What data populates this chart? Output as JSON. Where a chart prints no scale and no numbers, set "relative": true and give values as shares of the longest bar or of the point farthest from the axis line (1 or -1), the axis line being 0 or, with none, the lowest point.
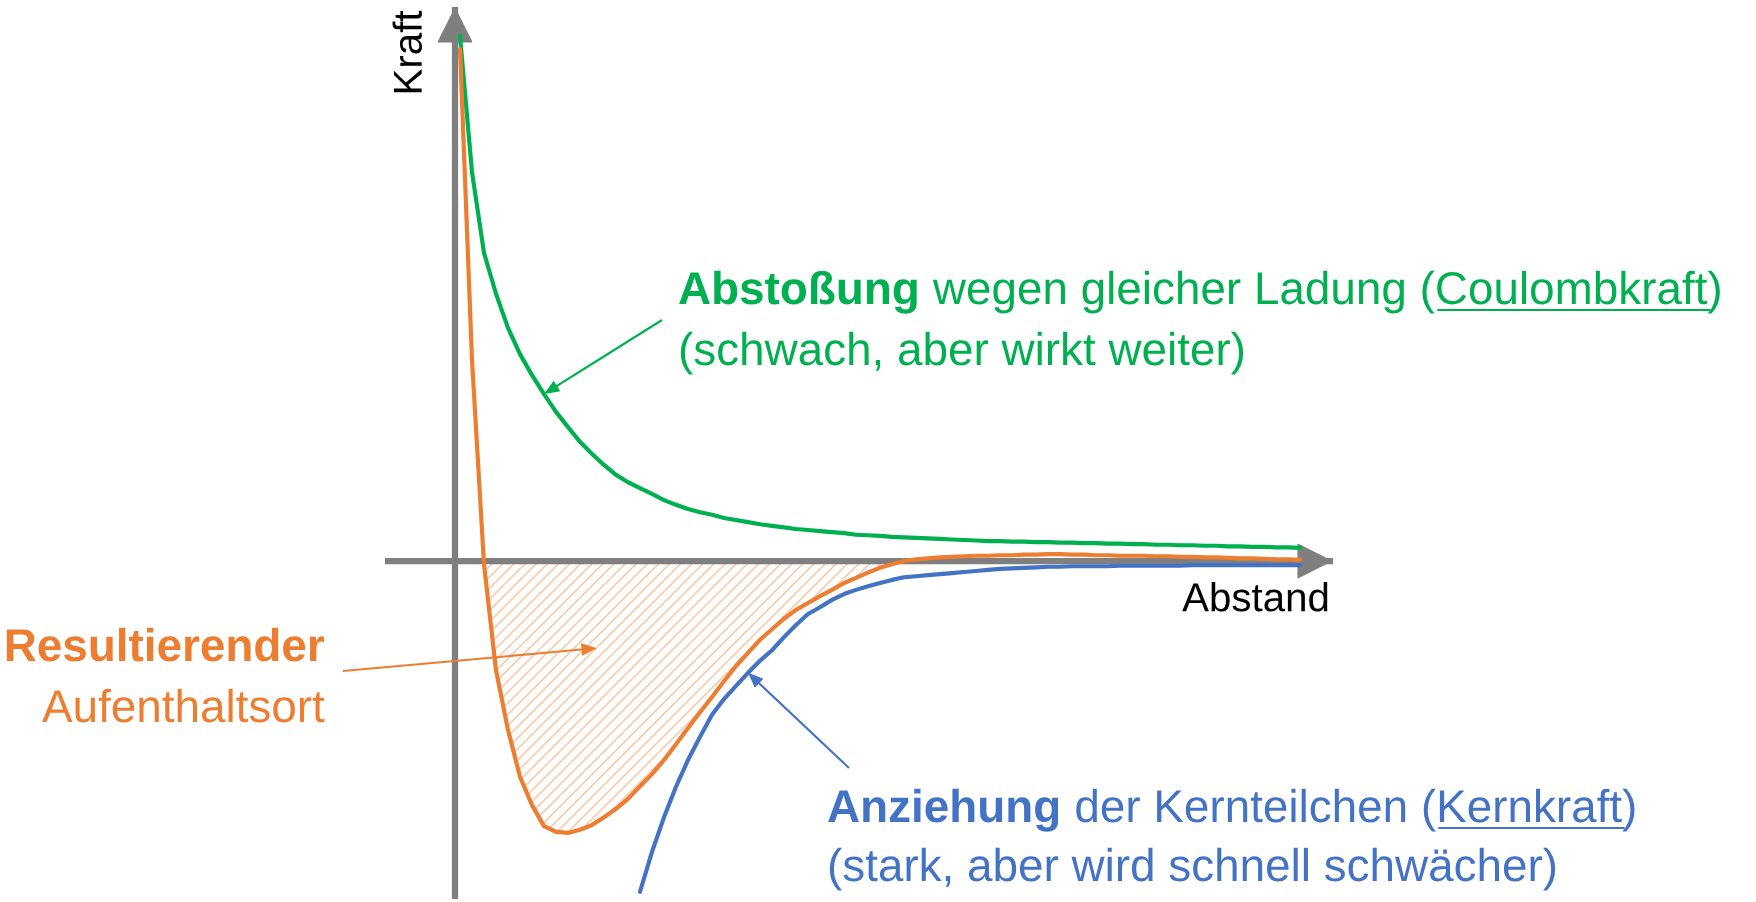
{
  "chart_data": {
    "type": "line",
    "relative": true,
    "xlabel": "Abstand",
    "ylabel": "Kraft",
    "annotations": [
      "Abstoßung wegen gleicher Ladung (Coulombkraft)\n(schwach, aber wirkt weiter)",
      "Resultierender\nAufenthaltsort",
      "Anziehung der Kernteilchen (Kernkraft)\n(stark, aber wird schnell schwächer)"
    ],
    "categories": [
      null,
      null,
      null,
      null,
      null,
      null,
      null,
      null,
      null,
      null,
      null,
      null,
      null,
      null,
      null,
      null,
      null,
      null,
      null,
      null,
      null,
      null,
      null,
      null,
      null,
      null,
      null,
      null,
      null,
      null,
      null,
      null,
      null,
      null,
      null,
      null,
      null,
      null,
      null,
      null,
      null,
      null,
      null,
      null,
      null,
      null,
      null,
      null,
      null,
      null,
      null,
      null,
      null,
      null,
      null,
      null,
      null,
      null,
      null,
      null,
      null,
      null,
      null,
      null,
      null,
      null,
      null,
      null,
      null,
      null,
      null
    ],
    "series": [
      {
        "color": "#00b050",
        "values": [
          1.0,
          0.741,
          0.587,
          0.509,
          0.444,
          0.394,
          0.354,
          0.318,
          0.284,
          0.255,
          0.227,
          0.204,
          0.183,
          0.164,
          0.15,
          0.139,
          0.128,
          0.116,
          0.107,
          0.099,
          0.093,
          0.088,
          0.082,
          0.078,
          0.074,
          0.07,
          0.067,
          0.064,
          0.061,
          0.059,
          0.057,
          0.055,
          0.053,
          0.05,
          0.049,
          0.048,
          0.046,
          0.045,
          0.044,
          0.043,
          0.042,
          0.041,
          0.04,
          0.039,
          0.038,
          0.038,
          0.037,
          0.037,
          0.036,
          0.036,
          0.035,
          0.035,
          0.034,
          0.034,
          0.033,
          0.033,
          0.032,
          0.032,
          0.031,
          0.031,
          0.03,
          0.03,
          0.029,
          0.029,
          0.028,
          0.028,
          0.027,
          0.027,
          0.026,
          0.026,
          0.025
        ]
      },
      {
        "color": "#4472c4",
        "values": [
          null,
          null,
          null,
          null,
          null,
          null,
          null,
          null,
          null,
          null,
          null,
          null,
          null,
          null,
          null,
          -0.63,
          -0.554,
          -0.488,
          -0.43,
          -0.379,
          -0.335,
          -0.293,
          -0.263,
          -0.238,
          -0.213,
          -0.19,
          -0.17,
          -0.145,
          -0.122,
          -0.101,
          -0.088,
          -0.074,
          -0.063,
          -0.055,
          -0.048,
          -0.042,
          -0.036,
          -0.031,
          -0.029,
          -0.027,
          -0.025,
          -0.023,
          -0.021,
          -0.019,
          -0.017,
          -0.015,
          -0.014,
          -0.013,
          -0.012,
          -0.011,
          -0.011,
          -0.01,
          -0.01,
          -0.01,
          -0.01,
          -0.009,
          -0.009,
          -0.009,
          -0.009,
          -0.009,
          -0.009,
          -0.008,
          -0.008,
          -0.008,
          -0.008,
          -0.008,
          -0.008,
          -0.008,
          -0.008,
          -0.008,
          -0.008
        ]
      },
      {
        "type": "area",
        "color": "#f8cbad",
        "values": [
          null,
          null,
          -0.006,
          -0.208,
          -0.322,
          -0.411,
          -0.465,
          -0.505,
          -0.516,
          -0.518,
          -0.512,
          -0.503,
          -0.488,
          -0.472,
          -0.453,
          -0.429,
          -0.406,
          -0.379,
          -0.349,
          -0.318,
          -0.288,
          -0.259,
          -0.229,
          -0.2,
          -0.175,
          -0.15,
          -0.13,
          -0.11,
          -0.093,
          -0.08,
          -0.067,
          -0.055,
          -0.042,
          -0.032,
          -0.022,
          -0.013,
          -0.006,
          0.0,
          null,
          null,
          null,
          null,
          null,
          null,
          null,
          null,
          null,
          null,
          null,
          null,
          null,
          null,
          null,
          null,
          null,
          null,
          null,
          null,
          null,
          null,
          null,
          null,
          null,
          null,
          null,
          null,
          null,
          null,
          null,
          null,
          null
        ]
      },
      {
        "color": "#ed7d31",
        "values": [
          0.975,
          0.383,
          -0.006,
          -0.208,
          -0.322,
          -0.411,
          -0.465,
          -0.505,
          -0.516,
          -0.518,
          -0.512,
          -0.503,
          -0.488,
          -0.472,
          -0.453,
          -0.429,
          -0.406,
          -0.379,
          -0.349,
          -0.318,
          -0.288,
          -0.259,
          -0.229,
          -0.2,
          -0.175,
          -0.15,
          -0.13,
          -0.11,
          -0.093,
          -0.08,
          -0.067,
          -0.055,
          -0.042,
          -0.032,
          -0.022,
          -0.013,
          -0.006,
          0.0,
          0.003,
          0.005,
          0.007,
          0.008,
          0.009,
          0.01,
          0.01,
          0.011,
          0.011,
          0.012,
          0.012,
          0.013,
          0.013,
          0.012,
          0.012,
          0.011,
          0.011,
          0.01,
          0.01,
          0.01,
          0.009,
          0.009,
          0.008,
          0.008,
          0.007,
          0.007,
          0.006,
          0.005,
          0.005,
          0.004,
          0.003,
          0.003,
          0.002
        ]
      }
    ]
  }
}
